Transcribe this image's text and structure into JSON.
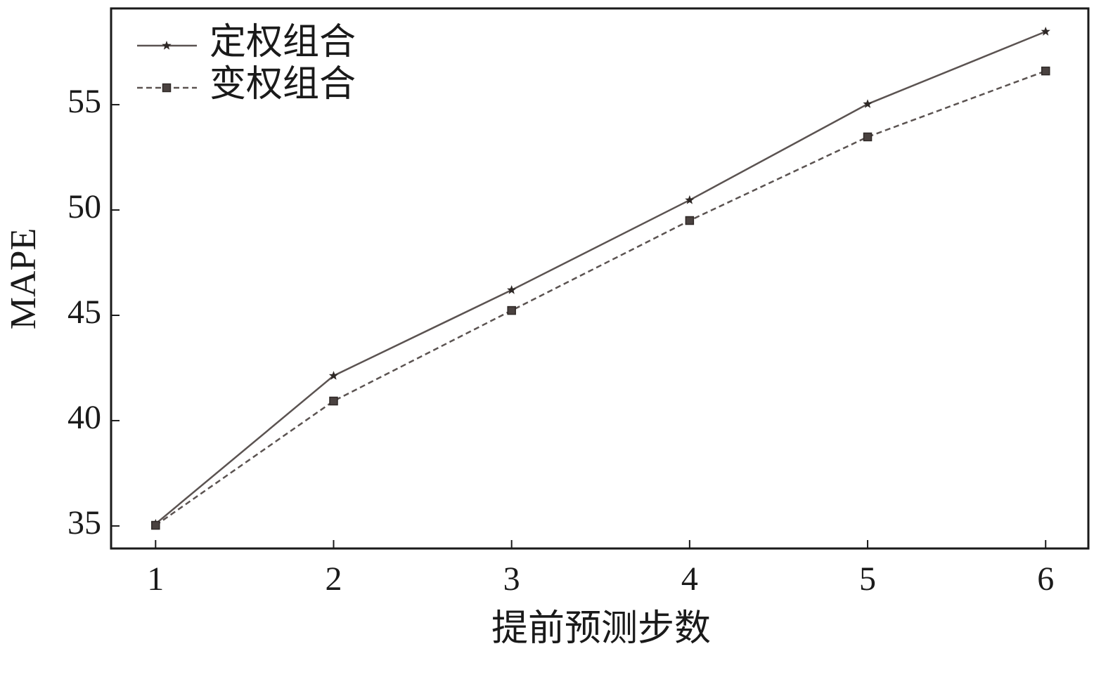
{
  "chart_data": {
    "type": "line",
    "xlabel": "提前预测步数",
    "ylabel": "MAPE",
    "x": [
      1,
      2,
      3,
      4,
      5,
      6
    ],
    "series": [
      {
        "name": "定权组合",
        "color": "#5b5351",
        "marker": "star",
        "linestyle": "solid",
        "values": [
          35.1,
          42.13,
          46.2,
          50.47,
          55.03,
          58.47
        ]
      },
      {
        "name": "变权组合",
        "color": "#5b5351",
        "marker": "square",
        "linestyle": "dashed",
        "values": [
          35.03,
          40.93,
          45.23,
          49.5,
          53.47,
          56.6
        ]
      }
    ],
    "xlim": [
      0.75,
      6.24
    ],
    "ylim": [
      33.93,
      59.57
    ],
    "xticks": [
      1,
      2,
      3,
      4,
      5,
      6
    ],
    "yticks": [
      35,
      40,
      45,
      50,
      55
    ],
    "legend": "upper left",
    "grid": false
  }
}
